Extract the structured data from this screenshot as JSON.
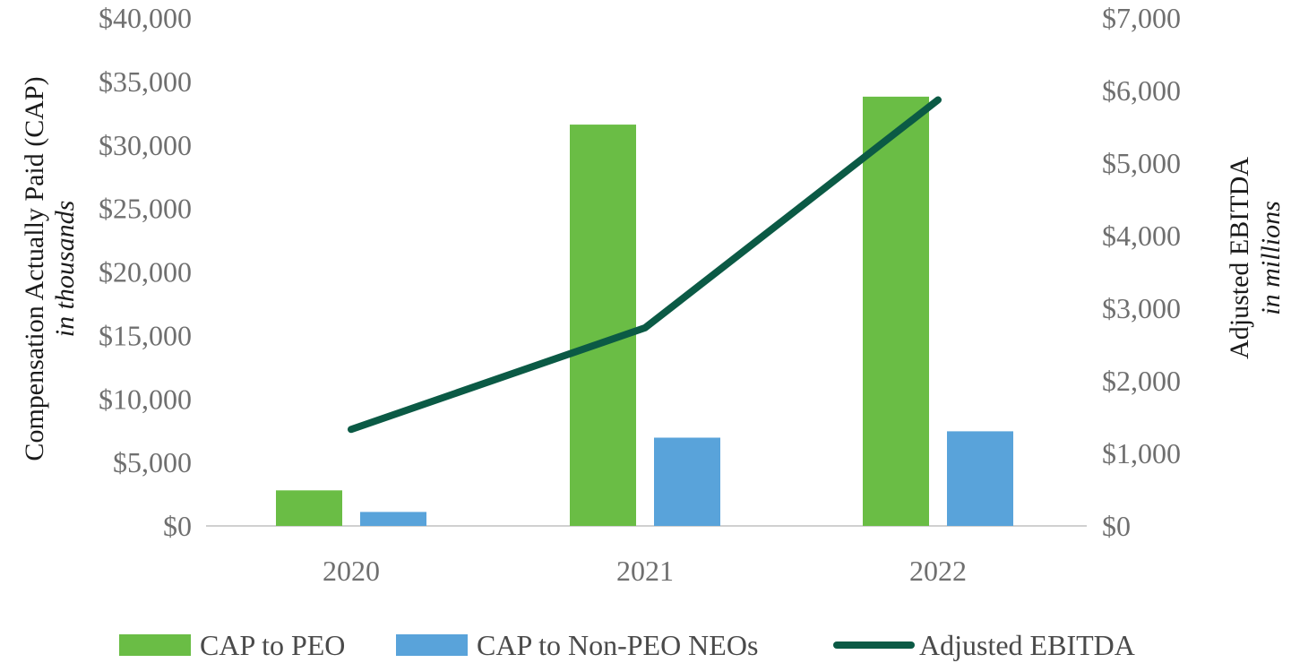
{
  "chart_data": {
    "type": "bar",
    "categories": [
      "2020",
      "2021",
      "2022"
    ],
    "series": [
      {
        "name": "CAP to PEO",
        "kind": "bar",
        "axis": "left",
        "color": "#6abd45",
        "values": [
          2800,
          31600,
          33800
        ]
      },
      {
        "name": "CAP to Non-PEO NEOs",
        "kind": "bar",
        "axis": "left",
        "color": "#59a3da",
        "values": [
          1100,
          6950,
          7450
        ]
      },
      {
        "name": "Adjusted EBITDA",
        "kind": "line",
        "axis": "right",
        "color": "#0b5a45",
        "values": [
          1330,
          2730,
          5870
        ]
      }
    ],
    "left_axis": {
      "title": "Compensation Actually Paid (CAP)",
      "subtitle": "in thousands",
      "ylim": [
        0,
        40000
      ],
      "ticks": [
        "$0",
        "$5,000",
        "$10,000",
        "$15,000",
        "$20,000",
        "$25,000",
        "$30,000",
        "$35,000",
        "$40,000"
      ]
    },
    "right_axis": {
      "title": "Adjusted EBITDA",
      "subtitle": "in millions",
      "ylim": [
        0,
        7000
      ],
      "ticks": [
        "$0",
        "$1,000",
        "$2,000",
        "$3,000",
        "$4,000",
        "$5,000",
        "$6,000",
        "$7,000"
      ]
    },
    "legend": [
      "CAP to PEO",
      "CAP to Non-PEO NEOs",
      "Adjusted EBITDA"
    ],
    "legend_position": "bottom",
    "grid": false
  }
}
